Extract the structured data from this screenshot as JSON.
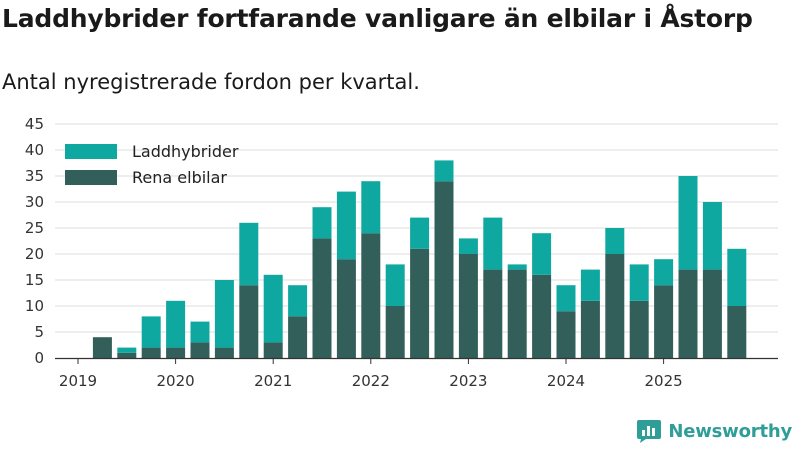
{
  "title": "Laddhybrider fortfarande vanligare än elbilar i Åstorp",
  "subtitle": "Antal nyregistrerade fordon per kvartal.",
  "brand": {
    "name": "Newsworthy",
    "icon": "newsworthy-logo-icon"
  },
  "colors": {
    "laddhybrider": "#0fa8a1",
    "rena_elbilar": "#335f5a",
    "grid": "#dddddd",
    "axis": "#333333",
    "brand": "#2f9e98"
  },
  "chart_data": {
    "type": "bar",
    "stacked": true,
    "title": "Laddhybrider fortfarande vanligare än elbilar i Åstorp",
    "subtitle": "Antal nyregistrerade fordon per kvartal.",
    "xlabel": "",
    "ylabel": "",
    "ylim": [
      0,
      45
    ],
    "yticks": [
      0,
      5,
      10,
      15,
      20,
      25,
      30,
      35,
      40,
      45
    ],
    "xtick_labels": [
      "2019",
      "2020",
      "2021",
      "2022",
      "2023",
      "2024",
      "2025"
    ],
    "grid": true,
    "legend_position": "top-left",
    "categories": [
      "2019 Q1",
      "2019 Q2",
      "2019 Q3",
      "2019 Q4",
      "2020 Q1",
      "2020 Q2",
      "2020 Q3",
      "2020 Q4",
      "2021 Q1",
      "2021 Q2",
      "2021 Q3",
      "2021 Q4",
      "2022 Q1",
      "2022 Q2",
      "2022 Q3",
      "2022 Q4",
      "2023 Q1",
      "2023 Q2",
      "2023 Q3",
      "2023 Q4",
      "2024 Q1",
      "2024 Q2",
      "2024 Q3",
      "2024 Q4",
      "2025 Q1",
      "2025 Q2",
      "2025 Q3",
      "2025 Q4"
    ],
    "series": [
      {
        "name": "Rena elbilar",
        "values": [
          0,
          4,
          1,
          2,
          2,
          3,
          2,
          14,
          3,
          8,
          23,
          19,
          24,
          10,
          21,
          34,
          20,
          17,
          17,
          16,
          9,
          11,
          20,
          11,
          14,
          17,
          17,
          10
        ]
      },
      {
        "name": "Laddhybrider",
        "values": [
          0,
          0,
          1,
          6,
          9,
          4,
          13,
          12,
          13,
          6,
          6,
          13,
          10,
          8,
          6,
          4,
          3,
          10,
          1,
          8,
          5,
          6,
          5,
          7,
          5,
          18,
          13,
          11
        ]
      }
    ]
  }
}
